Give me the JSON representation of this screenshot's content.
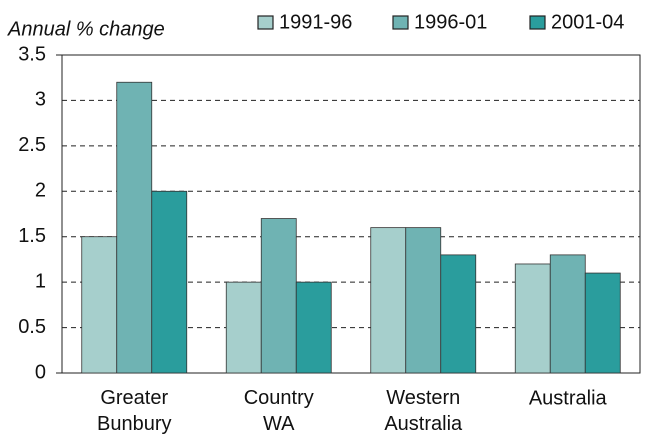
{
  "chart_data": {
    "type": "bar",
    "y_label": "Annual % change",
    "categories": [
      "Greater Bunbury",
      "Country WA",
      "Western Australia",
      "Australia"
    ],
    "series": [
      {
        "name": "1991-96",
        "color": "#a6cfcc",
        "values": [
          1.5,
          1.0,
          1.6,
          1.2
        ]
      },
      {
        "name": "1996-01",
        "color": "#6fb3b3",
        "values": [
          3.2,
          1.7,
          1.6,
          1.3
        ]
      },
      {
        "name": "2001-04",
        "color": "#2a9d9d",
        "values": [
          2.0,
          1.0,
          1.3,
          1.1
        ]
      }
    ],
    "ylim": [
      0,
      3.5
    ],
    "yticks": [
      0,
      0.5,
      1,
      1.5,
      2,
      2.5,
      3,
      3.5
    ],
    "grid": true,
    "legend": "top-right"
  }
}
